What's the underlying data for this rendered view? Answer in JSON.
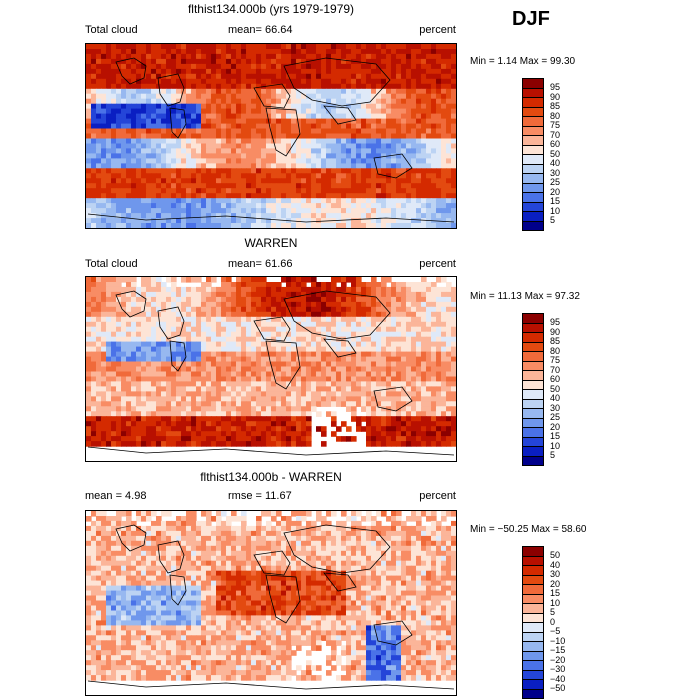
{
  "figure": {
    "season": "DJF"
  },
  "chart_data": [
    {
      "type": "heatmap",
      "title": "flthist134.000b (yrs 1979-1979)",
      "left_label": "Total cloud",
      "stat_label": "mean=  66.64",
      "units": "percent",
      "minmax": "Min =   1.14 Max =  99.30",
      "stats": {
        "mean": 66.64,
        "min": 1.14,
        "max": 99.3
      },
      "colorbar_levels": [
        "95",
        "90",
        "85",
        "80",
        "75",
        "70",
        "60",
        "50",
        "40",
        "30",
        "25",
        "20",
        "15",
        "10",
        "5"
      ],
      "palette": [
        "#8b0000",
        "#b81000",
        "#d42a00",
        "#e34a10",
        "#f06a3a",
        "#f88c64",
        "#fbb599",
        "#fde4d6",
        "#dfe9f8",
        "#bcd3f3",
        "#97b8f0",
        "#6f97ec",
        "#4a72e8",
        "#2445d8",
        "#0a1fc2",
        "#00008b"
      ]
    },
    {
      "type": "heatmap",
      "title": "WARREN",
      "left_label": "Total cloud",
      "stat_label": "mean=  61.66",
      "units": "percent",
      "minmax": "Min =  11.13 Max =  97.32",
      "stats": {
        "mean": 61.66,
        "min": 11.13,
        "max": 97.32
      },
      "colorbar_levels": [
        "95",
        "90",
        "85",
        "80",
        "75",
        "70",
        "60",
        "50",
        "40",
        "30",
        "25",
        "20",
        "15",
        "10",
        "5"
      ],
      "palette": [
        "#8b0000",
        "#b81000",
        "#d42a00",
        "#e34a10",
        "#f06a3a",
        "#f88c64",
        "#fbb599",
        "#fde4d6",
        "#dfe9f8",
        "#bcd3f3",
        "#97b8f0",
        "#6f97ec",
        "#4a72e8",
        "#2445d8",
        "#0a1fc2",
        "#00008b"
      ]
    },
    {
      "type": "heatmap",
      "title": "flthist134.000b - WARREN",
      "left_label": "mean =   4.98",
      "stat_label": "rmse =  11.67",
      "units": "percent",
      "minmax": "Min = −50.25 Max =  58.60",
      "stats": {
        "mean": 4.98,
        "rmse": 11.67,
        "min": -50.25,
        "max": 58.6
      },
      "colorbar_levels": [
        "50",
        "40",
        "30",
        "20",
        "15",
        "10",
        "5",
        "0",
        "−5",
        "−10",
        "−15",
        "−20",
        "−30",
        "−40",
        "−50"
      ],
      "palette": [
        "#8b0000",
        "#b81000",
        "#d42a00",
        "#e34a10",
        "#f06a3a",
        "#f88c64",
        "#fbb599",
        "#fde4d6",
        "#dfe9f8",
        "#bcd3f3",
        "#97b8f0",
        "#6f97ec",
        "#4a72e8",
        "#2445d8",
        "#0a1fc2",
        "#00008b"
      ]
    }
  ]
}
